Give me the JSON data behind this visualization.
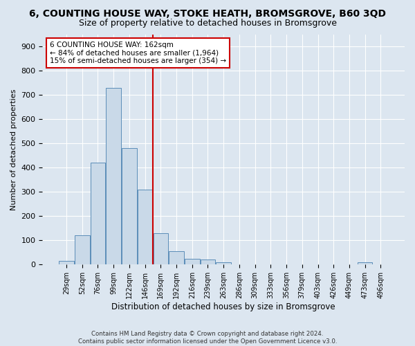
{
  "title": "6, COUNTING HOUSE WAY, STOKE HEATH, BROMSGROVE, B60 3QD",
  "subtitle": "Size of property relative to detached houses in Bromsgrove",
  "xlabel": "Distribution of detached houses by size in Bromsgrove",
  "ylabel": "Number of detached properties",
  "footer_line1": "Contains HM Land Registry data © Crown copyright and database right 2024.",
  "footer_line2": "Contains public sector information licensed under the Open Government Licence v3.0.",
  "bin_labels": [
    "29sqm",
    "52sqm",
    "76sqm",
    "99sqm",
    "122sqm",
    "146sqm",
    "169sqm",
    "192sqm",
    "216sqm",
    "239sqm",
    "263sqm",
    "286sqm",
    "309sqm",
    "333sqm",
    "356sqm",
    "379sqm",
    "403sqm",
    "426sqm",
    "449sqm",
    "473sqm",
    "496sqm"
  ],
  "bar_values": [
    15,
    120,
    420,
    730,
    480,
    310,
    130,
    55,
    25,
    20,
    10,
    0,
    0,
    0,
    0,
    0,
    0,
    0,
    0,
    10,
    0
  ],
  "bar_color": "#c9d9e8",
  "bar_edge_color": "#5b8db8",
  "vline_bin_index": 6,
  "vline_color": "#cc0000",
  "annotation_line1": "6 COUNTING HOUSE WAY: 162sqm",
  "annotation_line2": "← 84% of detached houses are smaller (1,964)",
  "annotation_line3": "15% of semi-detached houses are larger (354) →",
  "annotation_box_color": "#ffffff",
  "annotation_box_edge_color": "#cc0000",
  "ylim": [
    0,
    950
  ],
  "yticks": [
    0,
    100,
    200,
    300,
    400,
    500,
    600,
    700,
    800,
    900
  ],
  "background_color": "#dce6f0",
  "axes_background_color": "#dce6f0",
  "grid_color": "#ffffff",
  "title_fontsize": 10,
  "subtitle_fontsize": 9
}
